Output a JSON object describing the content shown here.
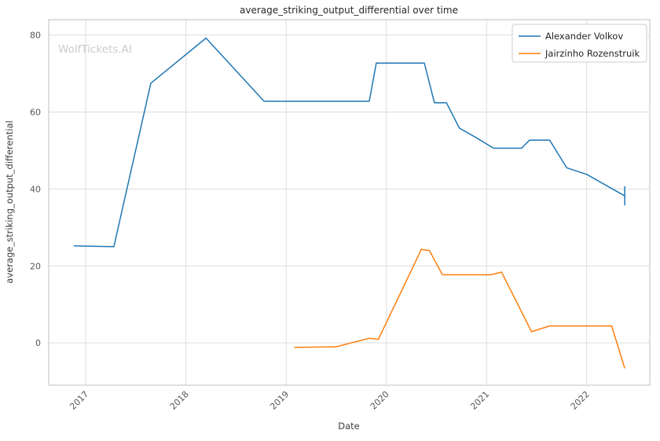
{
  "watermark": "WolfTickets.AI",
  "colors": {
    "grid": "#dddddd",
    "axis_border": "#cccccc",
    "volkov_blue": "#1f77b4",
    "rozenstruik_orange": "#ff7f0e"
  },
  "chart_data": {
    "type": "line",
    "title": "average_striking_output_differential over time",
    "xlabel": "Date",
    "ylabel": "average_striking_output_differential",
    "xlim": [
      2016.63,
      2022.63
    ],
    "ylim": [
      -11,
      84
    ],
    "x_ticks": [
      2017,
      2018,
      2019,
      2020,
      2021,
      2022
    ],
    "y_ticks": [
      0,
      20,
      40,
      60,
      80
    ],
    "grid": true,
    "legend_position": "upper right",
    "series": [
      {
        "name": "Alexander Volkov",
        "color": "#1f77b4",
        "points": [
          [
            2016.88,
            25.2
          ],
          [
            2017.28,
            25.0
          ],
          [
            2017.65,
            67.5
          ],
          [
            2018.2,
            79.2
          ],
          [
            2018.78,
            62.8
          ],
          [
            2019.83,
            62.8
          ],
          [
            2019.9,
            72.7
          ],
          [
            2020.38,
            72.7
          ],
          [
            2020.48,
            62.4
          ],
          [
            2020.6,
            62.4
          ],
          [
            2020.73,
            55.8
          ],
          [
            2020.9,
            53.3
          ],
          [
            2021.07,
            50.6
          ],
          [
            2021.35,
            50.6
          ],
          [
            2021.43,
            52.7
          ],
          [
            2021.63,
            52.7
          ],
          [
            2021.8,
            45.5
          ],
          [
            2022.0,
            43.8
          ],
          [
            2022.38,
            38.2
          ]
        ],
        "end_cap": {
          "x": 2022.38,
          "y_low": 35.7,
          "y_high": 40.7
        }
      },
      {
        "name": "Jairzinho Rozenstruik",
        "color": "#ff7f0e",
        "points": [
          [
            2019.08,
            -1.2
          ],
          [
            2019.5,
            -1.0
          ],
          [
            2019.83,
            1.2
          ],
          [
            2019.92,
            0.9
          ],
          [
            2020.35,
            24.3
          ],
          [
            2020.43,
            24.0
          ],
          [
            2020.56,
            17.7
          ],
          [
            2021.05,
            17.7
          ],
          [
            2021.15,
            18.4
          ],
          [
            2021.45,
            2.9
          ],
          [
            2021.63,
            4.4
          ],
          [
            2022.25,
            4.4
          ],
          [
            2022.38,
            -6.6
          ]
        ]
      }
    ]
  }
}
